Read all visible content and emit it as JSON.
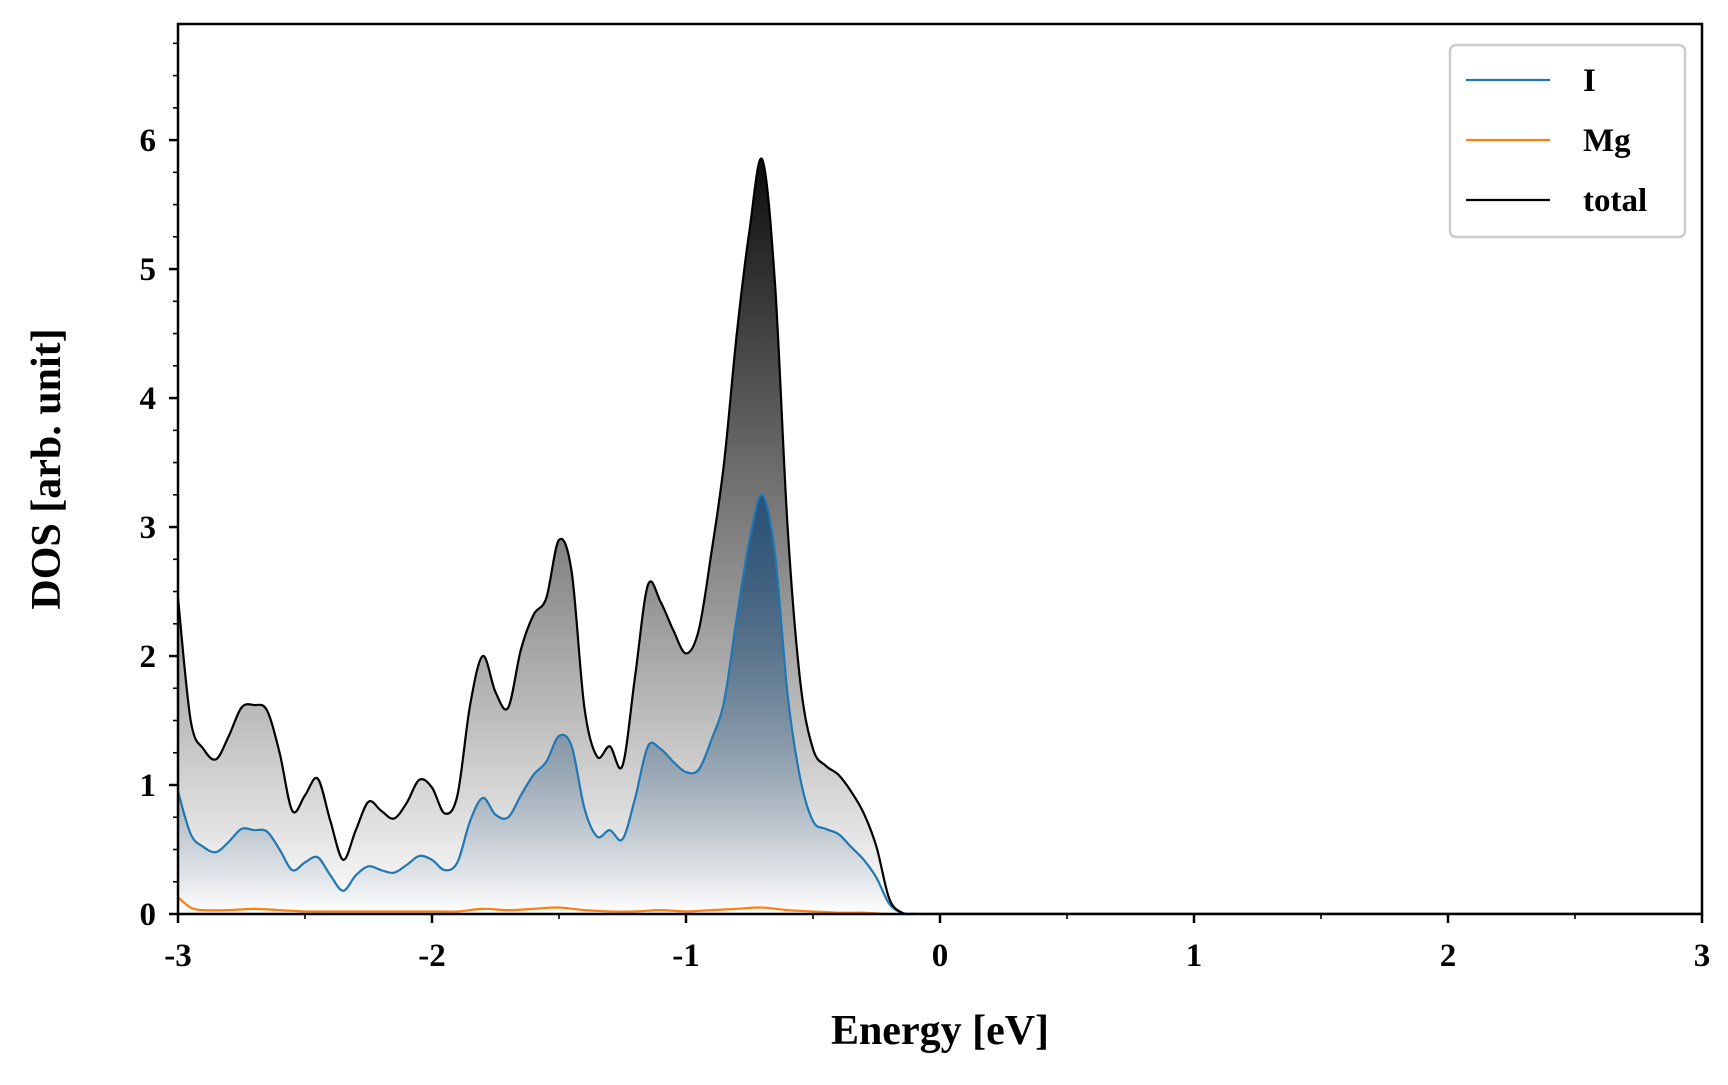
{
  "chart_data": {
    "type": "area",
    "xlabel": "Energy [eV]",
    "ylabel": "DOS [arb. unit]",
    "xlim": [
      -3,
      3
    ],
    "ylim": [
      0,
      6.9
    ],
    "xticks": [
      -3,
      -2,
      -1,
      0,
      1,
      2,
      3
    ],
    "xtick_labels": [
      "-3",
      "-2",
      "-1",
      "0",
      "1",
      "2",
      "3"
    ],
    "yticks": [
      0,
      1,
      2,
      3,
      4,
      5,
      6
    ],
    "ytick_labels": [
      "0",
      "1",
      "2",
      "3",
      "4",
      "5",
      "6"
    ],
    "x_minor_step": 0.5,
    "y_minor_step": 0.25,
    "grid": false,
    "legend_position": "top-right",
    "fill": "vertical gradient under I and total curves",
    "series": [
      {
        "name": "I",
        "color": "#1f77b4",
        "fill_color": "#1f4e79",
        "points": [
          [
            -3.0,
            0.95
          ],
          [
            -2.95,
            0.62
          ],
          [
            -2.9,
            0.52
          ],
          [
            -2.85,
            0.48
          ],
          [
            -2.8,
            0.56
          ],
          [
            -2.75,
            0.66
          ],
          [
            -2.7,
            0.65
          ],
          [
            -2.65,
            0.64
          ],
          [
            -2.6,
            0.5
          ],
          [
            -2.55,
            0.34
          ],
          [
            -2.5,
            0.4
          ],
          [
            -2.45,
            0.44
          ],
          [
            -2.4,
            0.3
          ],
          [
            -2.35,
            0.18
          ],
          [
            -2.3,
            0.3
          ],
          [
            -2.25,
            0.37
          ],
          [
            -2.2,
            0.34
          ],
          [
            -2.15,
            0.32
          ],
          [
            -2.1,
            0.38
          ],
          [
            -2.05,
            0.45
          ],
          [
            -2.0,
            0.42
          ],
          [
            -1.95,
            0.34
          ],
          [
            -1.9,
            0.4
          ],
          [
            -1.85,
            0.72
          ],
          [
            -1.8,
            0.9
          ],
          [
            -1.75,
            0.77
          ],
          [
            -1.7,
            0.75
          ],
          [
            -1.65,
            0.92
          ],
          [
            -1.6,
            1.08
          ],
          [
            -1.55,
            1.18
          ],
          [
            -1.5,
            1.38
          ],
          [
            -1.45,
            1.3
          ],
          [
            -1.4,
            0.82
          ],
          [
            -1.35,
            0.6
          ],
          [
            -1.3,
            0.65
          ],
          [
            -1.25,
            0.58
          ],
          [
            -1.2,
            0.9
          ],
          [
            -1.15,
            1.3
          ],
          [
            -1.1,
            1.28
          ],
          [
            -1.05,
            1.18
          ],
          [
            -1.0,
            1.1
          ],
          [
            -0.95,
            1.12
          ],
          [
            -0.9,
            1.35
          ],
          [
            -0.85,
            1.65
          ],
          [
            -0.8,
            2.3
          ],
          [
            -0.75,
            2.9
          ],
          [
            -0.7,
            3.25
          ],
          [
            -0.65,
            2.8
          ],
          [
            -0.6,
            1.7
          ],
          [
            -0.55,
            1.05
          ],
          [
            -0.5,
            0.72
          ],
          [
            -0.45,
            0.66
          ],
          [
            -0.4,
            0.62
          ],
          [
            -0.35,
            0.52
          ],
          [
            -0.3,
            0.42
          ],
          [
            -0.25,
            0.28
          ],
          [
            -0.2,
            0.08
          ],
          [
            -0.15,
            0.01
          ],
          [
            -0.1,
            0.0
          ],
          [
            0.0,
            0.0
          ],
          [
            3.0,
            0.0
          ]
        ]
      },
      {
        "name": "Mg",
        "color": "#ff7f0e",
        "points": [
          [
            -3.0,
            0.13
          ],
          [
            -2.95,
            0.05
          ],
          [
            -2.9,
            0.03
          ],
          [
            -2.8,
            0.03
          ],
          [
            -2.7,
            0.04
          ],
          [
            -2.6,
            0.03
          ],
          [
            -2.5,
            0.02
          ],
          [
            -2.4,
            0.02
          ],
          [
            -2.3,
            0.02
          ],
          [
            -2.2,
            0.02
          ],
          [
            -2.1,
            0.02
          ],
          [
            -2.0,
            0.02
          ],
          [
            -1.9,
            0.02
          ],
          [
            -1.8,
            0.04
          ],
          [
            -1.7,
            0.03
          ],
          [
            -1.6,
            0.04
          ],
          [
            -1.5,
            0.05
          ],
          [
            -1.4,
            0.03
          ],
          [
            -1.3,
            0.02
          ],
          [
            -1.2,
            0.02
          ],
          [
            -1.1,
            0.03
          ],
          [
            -1.0,
            0.02
          ],
          [
            -0.9,
            0.03
          ],
          [
            -0.8,
            0.04
          ],
          [
            -0.7,
            0.05
          ],
          [
            -0.6,
            0.03
          ],
          [
            -0.5,
            0.02
          ],
          [
            -0.4,
            0.01
          ],
          [
            -0.3,
            0.01
          ],
          [
            -0.2,
            0.0
          ],
          [
            0.0,
            0.0
          ],
          [
            3.0,
            0.0
          ]
        ]
      },
      {
        "name": "total",
        "color": "#000000",
        "fill_color": "#000000",
        "points": [
          [
            -3.0,
            2.45
          ],
          [
            -2.95,
            1.5
          ],
          [
            -2.9,
            1.28
          ],
          [
            -2.85,
            1.2
          ],
          [
            -2.8,
            1.38
          ],
          [
            -2.75,
            1.6
          ],
          [
            -2.7,
            1.62
          ],
          [
            -2.65,
            1.58
          ],
          [
            -2.6,
            1.25
          ],
          [
            -2.55,
            0.8
          ],
          [
            -2.5,
            0.92
          ],
          [
            -2.45,
            1.05
          ],
          [
            -2.4,
            0.72
          ],
          [
            -2.35,
            0.42
          ],
          [
            -2.3,
            0.65
          ],
          [
            -2.25,
            0.87
          ],
          [
            -2.2,
            0.8
          ],
          [
            -2.15,
            0.74
          ],
          [
            -2.1,
            0.86
          ],
          [
            -2.05,
            1.04
          ],
          [
            -2.0,
            0.98
          ],
          [
            -1.95,
            0.78
          ],
          [
            -1.9,
            0.92
          ],
          [
            -1.85,
            1.62
          ],
          [
            -1.8,
            2.0
          ],
          [
            -1.75,
            1.72
          ],
          [
            -1.7,
            1.6
          ],
          [
            -1.65,
            2.05
          ],
          [
            -1.6,
            2.32
          ],
          [
            -1.55,
            2.45
          ],
          [
            -1.5,
            2.9
          ],
          [
            -1.45,
            2.65
          ],
          [
            -1.4,
            1.6
          ],
          [
            -1.35,
            1.22
          ],
          [
            -1.3,
            1.3
          ],
          [
            -1.25,
            1.15
          ],
          [
            -1.2,
            1.85
          ],
          [
            -1.15,
            2.55
          ],
          [
            -1.1,
            2.42
          ],
          [
            -1.05,
            2.2
          ],
          [
            -1.0,
            2.02
          ],
          [
            -0.95,
            2.2
          ],
          [
            -0.9,
            2.8
          ],
          [
            -0.85,
            3.5
          ],
          [
            -0.8,
            4.5
          ],
          [
            -0.75,
            5.3
          ],
          [
            -0.7,
            5.85
          ],
          [
            -0.65,
            4.9
          ],
          [
            -0.6,
            3.0
          ],
          [
            -0.55,
            1.8
          ],
          [
            -0.5,
            1.28
          ],
          [
            -0.45,
            1.15
          ],
          [
            -0.4,
            1.08
          ],
          [
            -0.35,
            0.95
          ],
          [
            -0.3,
            0.78
          ],
          [
            -0.25,
            0.52
          ],
          [
            -0.2,
            0.12
          ],
          [
            -0.15,
            0.01
          ],
          [
            -0.1,
            0.0
          ],
          [
            0.0,
            0.0
          ],
          [
            3.0,
            0.0
          ]
        ]
      }
    ]
  }
}
